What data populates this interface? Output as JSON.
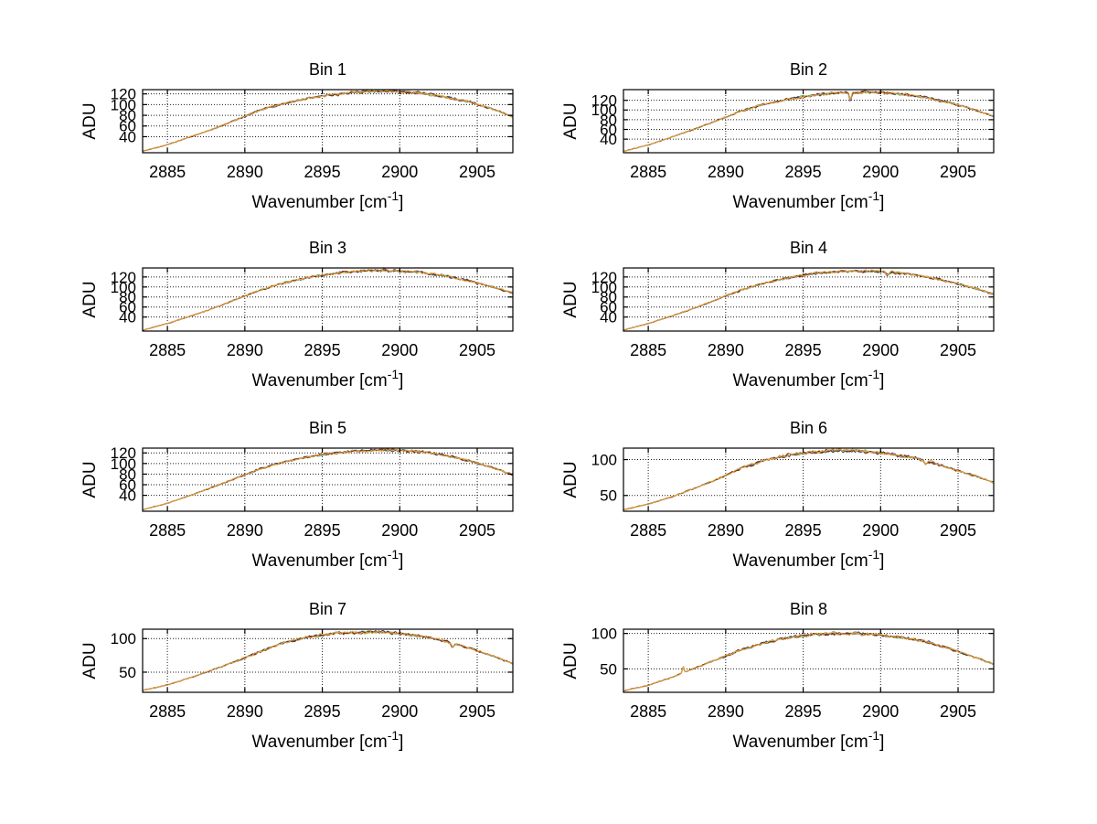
{
  "figure": {
    "background": "#ffffff",
    "axis_color": "#000000",
    "grid_color": "#1c1c1c",
    "ylabel": "ADU",
    "xlabel": {
      "main": "Wavenumber [cm",
      "superscript": "-1",
      "suffix": "]"
    },
    "xlim": [
      2883.4,
      2907.3
    ],
    "xticks": [
      2885,
      2890,
      2895,
      2900,
      2905
    ],
    "grid": true,
    "legend": "none",
    "series_style": [
      {
        "name": "trace-green",
        "color": "#53b573",
        "jitter": 0.85
      },
      {
        "name": "trace-navy",
        "color": "#3a3a85",
        "jitter": 0.9
      },
      {
        "name": "trace-maroon",
        "color": "#7a2f12",
        "jitter": 1.0
      },
      {
        "name": "trace-orange",
        "color": "#e9a63a",
        "jitter": 1.0
      }
    ]
  },
  "chart_data": [
    {
      "type": "line",
      "title": "Bin 1",
      "xlabel": "Wavenumber [cm^-1]",
      "ylabel": "ADU",
      "xlim": [
        2883.4,
        2907.3
      ],
      "ylim": [
        10,
        128
      ],
      "yticks": [
        40,
        60,
        80,
        100,
        120
      ],
      "xticks": [
        2885,
        2890,
        2895,
        2900,
        2905
      ],
      "x": [
        2883.4,
        2885,
        2886.5,
        2888,
        2889.5,
        2891,
        2892.5,
        2894,
        2895.5,
        2897,
        2898.5,
        2900,
        2901.5,
        2903,
        2904.5,
        2906,
        2907.3
      ],
      "adu": [
        13,
        25,
        40,
        55,
        72,
        90,
        102,
        111,
        118,
        123,
        125,
        124,
        121,
        114,
        105,
        92,
        77
      ],
      "noise_adu": 2.2,
      "features": []
    },
    {
      "type": "line",
      "title": "Bin 2",
      "xlabel": "Wavenumber [cm^-1]",
      "ylabel": "ADU",
      "xlim": [
        2883.4,
        2907.3
      ],
      "ylim": [
        12,
        142
      ],
      "yticks": [
        40,
        60,
        80,
        100,
        120
      ],
      "xticks": [
        2885,
        2890,
        2895,
        2900,
        2905
      ],
      "x": [
        2883.4,
        2885,
        2886.5,
        2888,
        2889.5,
        2891,
        2892.5,
        2894,
        2895.5,
        2897,
        2898.5,
        2900,
        2901.5,
        2903,
        2904.5,
        2906,
        2907.3
      ],
      "adu": [
        15,
        28,
        44,
        61,
        79,
        98,
        112,
        122,
        130,
        135,
        137,
        136,
        132,
        125,
        115,
        101,
        87
      ],
      "noise_adu": 2.4,
      "features": [
        {
          "x": 2898.05,
          "dy": -17,
          "w": 0.1
        }
      ]
    },
    {
      "type": "line",
      "title": "Bin 3",
      "xlabel": "Wavenumber [cm^-1]",
      "ylabel": "ADU",
      "xlim": [
        2883.4,
        2907.3
      ],
      "ylim": [
        12,
        138
      ],
      "yticks": [
        40,
        60,
        80,
        100,
        120
      ],
      "xticks": [
        2885,
        2890,
        2895,
        2900,
        2905
      ],
      "x": [
        2883.4,
        2885,
        2886.5,
        2888,
        2889.5,
        2891,
        2892.5,
        2894,
        2895.5,
        2897,
        2898.5,
        2900,
        2901.5,
        2903,
        2904.5,
        2906,
        2907.3
      ],
      "adu": [
        14,
        27,
        42,
        58,
        76,
        94,
        108,
        118,
        126,
        131,
        133,
        132,
        129,
        122,
        112,
        100,
        88
      ],
      "noise_adu": 2.2,
      "features": []
    },
    {
      "type": "line",
      "title": "Bin 4",
      "xlabel": "Wavenumber [cm^-1]",
      "ylabel": "ADU",
      "xlim": [
        2883.4,
        2907.3
      ],
      "ylim": [
        12,
        138
      ],
      "yticks": [
        40,
        60,
        80,
        100,
        120
      ],
      "xticks": [
        2885,
        2890,
        2895,
        2900,
        2905
      ],
      "x": [
        2883.4,
        2885,
        2886.5,
        2888,
        2889.5,
        2891,
        2892.5,
        2894,
        2895.5,
        2897,
        2898.5,
        2900,
        2901.5,
        2903,
        2904.5,
        2906,
        2907.3
      ],
      "adu": [
        14,
        27,
        42,
        58,
        76,
        94,
        108,
        118,
        126,
        130,
        132,
        131,
        127,
        120,
        110,
        98,
        86
      ],
      "noise_adu": 2.2,
      "features": [
        {
          "x": 2900.45,
          "dy": -6,
          "w": 0.15
        }
      ]
    },
    {
      "type": "line",
      "title": "Bin 5",
      "xlabel": "Wavenumber [cm^-1]",
      "ylabel": "ADU",
      "xlim": [
        2883.4,
        2907.3
      ],
      "ylim": [
        10,
        129
      ],
      "yticks": [
        40,
        60,
        80,
        100,
        120
      ],
      "xticks": [
        2885,
        2890,
        2895,
        2900,
        2905
      ],
      "x": [
        2883.4,
        2885,
        2886.5,
        2888,
        2889.5,
        2891,
        2892.5,
        2894,
        2895.5,
        2897,
        2898.5,
        2900,
        2901.5,
        2903,
        2904.5,
        2906,
        2907.3
      ],
      "adu": [
        13,
        25,
        40,
        56,
        73,
        90,
        103,
        112,
        119,
        123,
        125,
        125,
        122,
        115,
        105,
        92,
        79
      ],
      "noise_adu": 2.2,
      "features": []
    },
    {
      "type": "line",
      "title": "Bin 6",
      "xlabel": "Wavenumber [cm^-1]",
      "ylabel": "ADU",
      "xlim": [
        2883.4,
        2907.3
      ],
      "ylim": [
        28,
        116
      ],
      "yticks": [
        50,
        100
      ],
      "xticks": [
        2885,
        2890,
        2895,
        2900,
        2905
      ],
      "x": [
        2883.4,
        2885,
        2886.5,
        2888,
        2889.5,
        2891,
        2892.5,
        2894,
        2895.5,
        2897,
        2898.5,
        2900,
        2901.5,
        2903,
        2904.5,
        2906,
        2907.3
      ],
      "adu": [
        30,
        38,
        48,
        60,
        73,
        88,
        99,
        106,
        110,
        113,
        112,
        110,
        105,
        98,
        88,
        78,
        68
      ],
      "noise_adu": 2.0,
      "features": [
        {
          "x": 2902.9,
          "dy": -5,
          "w": 0.12
        }
      ]
    },
    {
      "type": "line",
      "title": "Bin 7",
      "xlabel": "Wavenumber [cm^-1]",
      "ylabel": "ADU",
      "xlim": [
        2883.4,
        2907.3
      ],
      "ylim": [
        20,
        114
      ],
      "yticks": [
        50,
        100
      ],
      "xticks": [
        2885,
        2890,
        2895,
        2900,
        2905
      ],
      "x": [
        2883.4,
        2885,
        2886.5,
        2888,
        2889.5,
        2891,
        2892.5,
        2894,
        2895.5,
        2897,
        2898.5,
        2900,
        2901.5,
        2903,
        2904.5,
        2906,
        2907.3
      ],
      "adu": [
        23,
        31,
        42,
        54,
        67,
        81,
        94,
        102,
        107,
        109,
        110,
        108,
        103,
        96,
        86,
        74,
        63
      ],
      "noise_adu": 2.0,
      "features": [
        {
          "x": 2903.4,
          "dy": -6,
          "w": 0.12
        }
      ]
    },
    {
      "type": "line",
      "title": "Bin 8",
      "xlabel": "Wavenumber [cm^-1]",
      "ylabel": "ADU",
      "xlim": [
        2883.4,
        2907.3
      ],
      "ylim": [
        17,
        106
      ],
      "yticks": [
        50,
        100
      ],
      "xticks": [
        2885,
        2890,
        2895,
        2900,
        2905
      ],
      "x": [
        2883.4,
        2885,
        2886.5,
        2888,
        2889.5,
        2891,
        2892.5,
        2894,
        2895.5,
        2897,
        2898.5,
        2900,
        2901.5,
        2903,
        2904.5,
        2906,
        2907.3
      ],
      "adu": [
        19,
        27,
        38,
        51,
        64,
        77,
        87,
        94,
        98,
        100,
        100,
        98,
        94,
        88,
        78,
        67,
        57
      ],
      "noise_adu": 2.0,
      "features": [
        {
          "x": 2887.25,
          "dy": 8,
          "w": 0.07
        }
      ]
    }
  ]
}
